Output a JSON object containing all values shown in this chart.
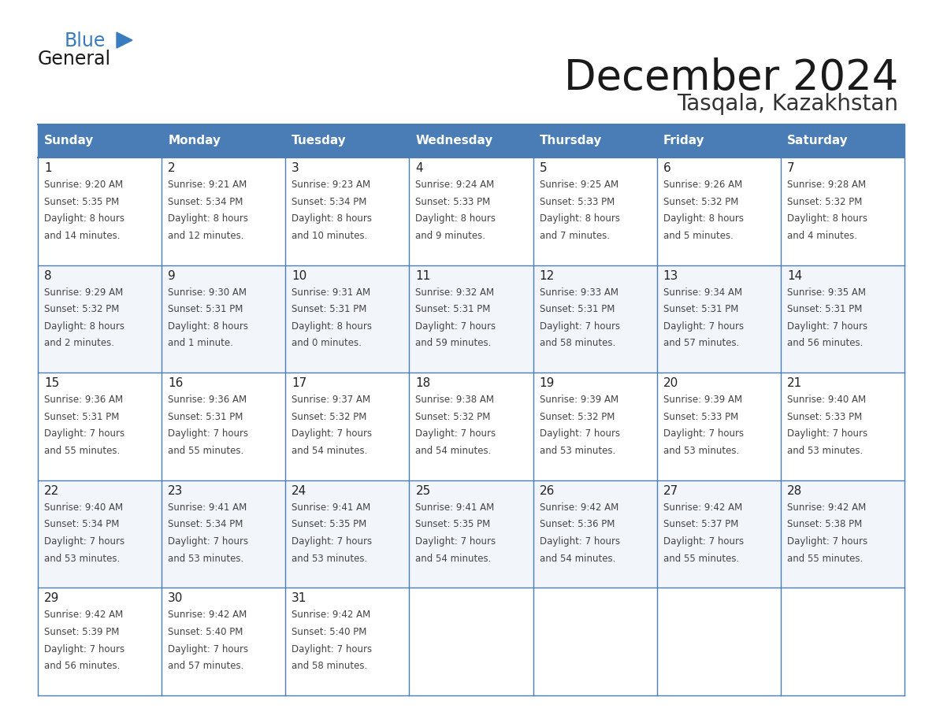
{
  "title": "December 2024",
  "subtitle": "Tasqala, Kazakhstan",
  "days_of_week": [
    "Sunday",
    "Monday",
    "Tuesday",
    "Wednesday",
    "Thursday",
    "Friday",
    "Saturday"
  ],
  "header_bg": "#4a7db5",
  "header_text": "#ffffff",
  "cell_bg_white": "#ffffff",
  "cell_bg_light": "#f2f6fb",
  "border_color": "#4a7db5",
  "day_num_color": "#222222",
  "cell_text_color": "#444444",
  "title_color": "#1a1a1a",
  "subtitle_color": "#333333",
  "logo_general_color": "#1a1a1a",
  "logo_blue_color": "#3a7bbf",
  "weeks": [
    [
      {
        "day": 1,
        "sunrise": "9:20 AM",
        "sunset": "5:35 PM",
        "daylight_hours": 8,
        "daylight_minutes": 14
      },
      {
        "day": 2,
        "sunrise": "9:21 AM",
        "sunset": "5:34 PM",
        "daylight_hours": 8,
        "daylight_minutes": 12
      },
      {
        "day": 3,
        "sunrise": "9:23 AM",
        "sunset": "5:34 PM",
        "daylight_hours": 8,
        "daylight_minutes": 10
      },
      {
        "day": 4,
        "sunrise": "9:24 AM",
        "sunset": "5:33 PM",
        "daylight_hours": 8,
        "daylight_minutes": 9
      },
      {
        "day": 5,
        "sunrise": "9:25 AM",
        "sunset": "5:33 PM",
        "daylight_hours": 8,
        "daylight_minutes": 7
      },
      {
        "day": 6,
        "sunrise": "9:26 AM",
        "sunset": "5:32 PM",
        "daylight_hours": 8,
        "daylight_minutes": 5
      },
      {
        "day": 7,
        "sunrise": "9:28 AM",
        "sunset": "5:32 PM",
        "daylight_hours": 8,
        "daylight_minutes": 4
      }
    ],
    [
      {
        "day": 8,
        "sunrise": "9:29 AM",
        "sunset": "5:32 PM",
        "daylight_hours": 8,
        "daylight_minutes": 2
      },
      {
        "day": 9,
        "sunrise": "9:30 AM",
        "sunset": "5:31 PM",
        "daylight_hours": 8,
        "daylight_minutes": 1
      },
      {
        "day": 10,
        "sunrise": "9:31 AM",
        "sunset": "5:31 PM",
        "daylight_hours": 8,
        "daylight_minutes": 0
      },
      {
        "day": 11,
        "sunrise": "9:32 AM",
        "sunset": "5:31 PM",
        "daylight_hours": 7,
        "daylight_minutes": 59
      },
      {
        "day": 12,
        "sunrise": "9:33 AM",
        "sunset": "5:31 PM",
        "daylight_hours": 7,
        "daylight_minutes": 58
      },
      {
        "day": 13,
        "sunrise": "9:34 AM",
        "sunset": "5:31 PM",
        "daylight_hours": 7,
        "daylight_minutes": 57
      },
      {
        "day": 14,
        "sunrise": "9:35 AM",
        "sunset": "5:31 PM",
        "daylight_hours": 7,
        "daylight_minutes": 56
      }
    ],
    [
      {
        "day": 15,
        "sunrise": "9:36 AM",
        "sunset": "5:31 PM",
        "daylight_hours": 7,
        "daylight_minutes": 55
      },
      {
        "day": 16,
        "sunrise": "9:36 AM",
        "sunset": "5:31 PM",
        "daylight_hours": 7,
        "daylight_minutes": 55
      },
      {
        "day": 17,
        "sunrise": "9:37 AM",
        "sunset": "5:32 PM",
        "daylight_hours": 7,
        "daylight_minutes": 54
      },
      {
        "day": 18,
        "sunrise": "9:38 AM",
        "sunset": "5:32 PM",
        "daylight_hours": 7,
        "daylight_minutes": 54
      },
      {
        "day": 19,
        "sunrise": "9:39 AM",
        "sunset": "5:32 PM",
        "daylight_hours": 7,
        "daylight_minutes": 53
      },
      {
        "day": 20,
        "sunrise": "9:39 AM",
        "sunset": "5:33 PM",
        "daylight_hours": 7,
        "daylight_minutes": 53
      },
      {
        "day": 21,
        "sunrise": "9:40 AM",
        "sunset": "5:33 PM",
        "daylight_hours": 7,
        "daylight_minutes": 53
      }
    ],
    [
      {
        "day": 22,
        "sunrise": "9:40 AM",
        "sunset": "5:34 PM",
        "daylight_hours": 7,
        "daylight_minutes": 53
      },
      {
        "day": 23,
        "sunrise": "9:41 AM",
        "sunset": "5:34 PM",
        "daylight_hours": 7,
        "daylight_minutes": 53
      },
      {
        "day": 24,
        "sunrise": "9:41 AM",
        "sunset": "5:35 PM",
        "daylight_hours": 7,
        "daylight_minutes": 53
      },
      {
        "day": 25,
        "sunrise": "9:41 AM",
        "sunset": "5:35 PM",
        "daylight_hours": 7,
        "daylight_minutes": 54
      },
      {
        "day": 26,
        "sunrise": "9:42 AM",
        "sunset": "5:36 PM",
        "daylight_hours": 7,
        "daylight_minutes": 54
      },
      {
        "day": 27,
        "sunrise": "9:42 AM",
        "sunset": "5:37 PM",
        "daylight_hours": 7,
        "daylight_minutes": 55
      },
      {
        "day": 28,
        "sunrise": "9:42 AM",
        "sunset": "5:38 PM",
        "daylight_hours": 7,
        "daylight_minutes": 55
      }
    ],
    [
      {
        "day": 29,
        "sunrise": "9:42 AM",
        "sunset": "5:39 PM",
        "daylight_hours": 7,
        "daylight_minutes": 56
      },
      {
        "day": 30,
        "sunrise": "9:42 AM",
        "sunset": "5:40 PM",
        "daylight_hours": 7,
        "daylight_minutes": 57
      },
      {
        "day": 31,
        "sunrise": "9:42 AM",
        "sunset": "5:40 PM",
        "daylight_hours": 7,
        "daylight_minutes": 58
      },
      null,
      null,
      null,
      null
    ]
  ]
}
